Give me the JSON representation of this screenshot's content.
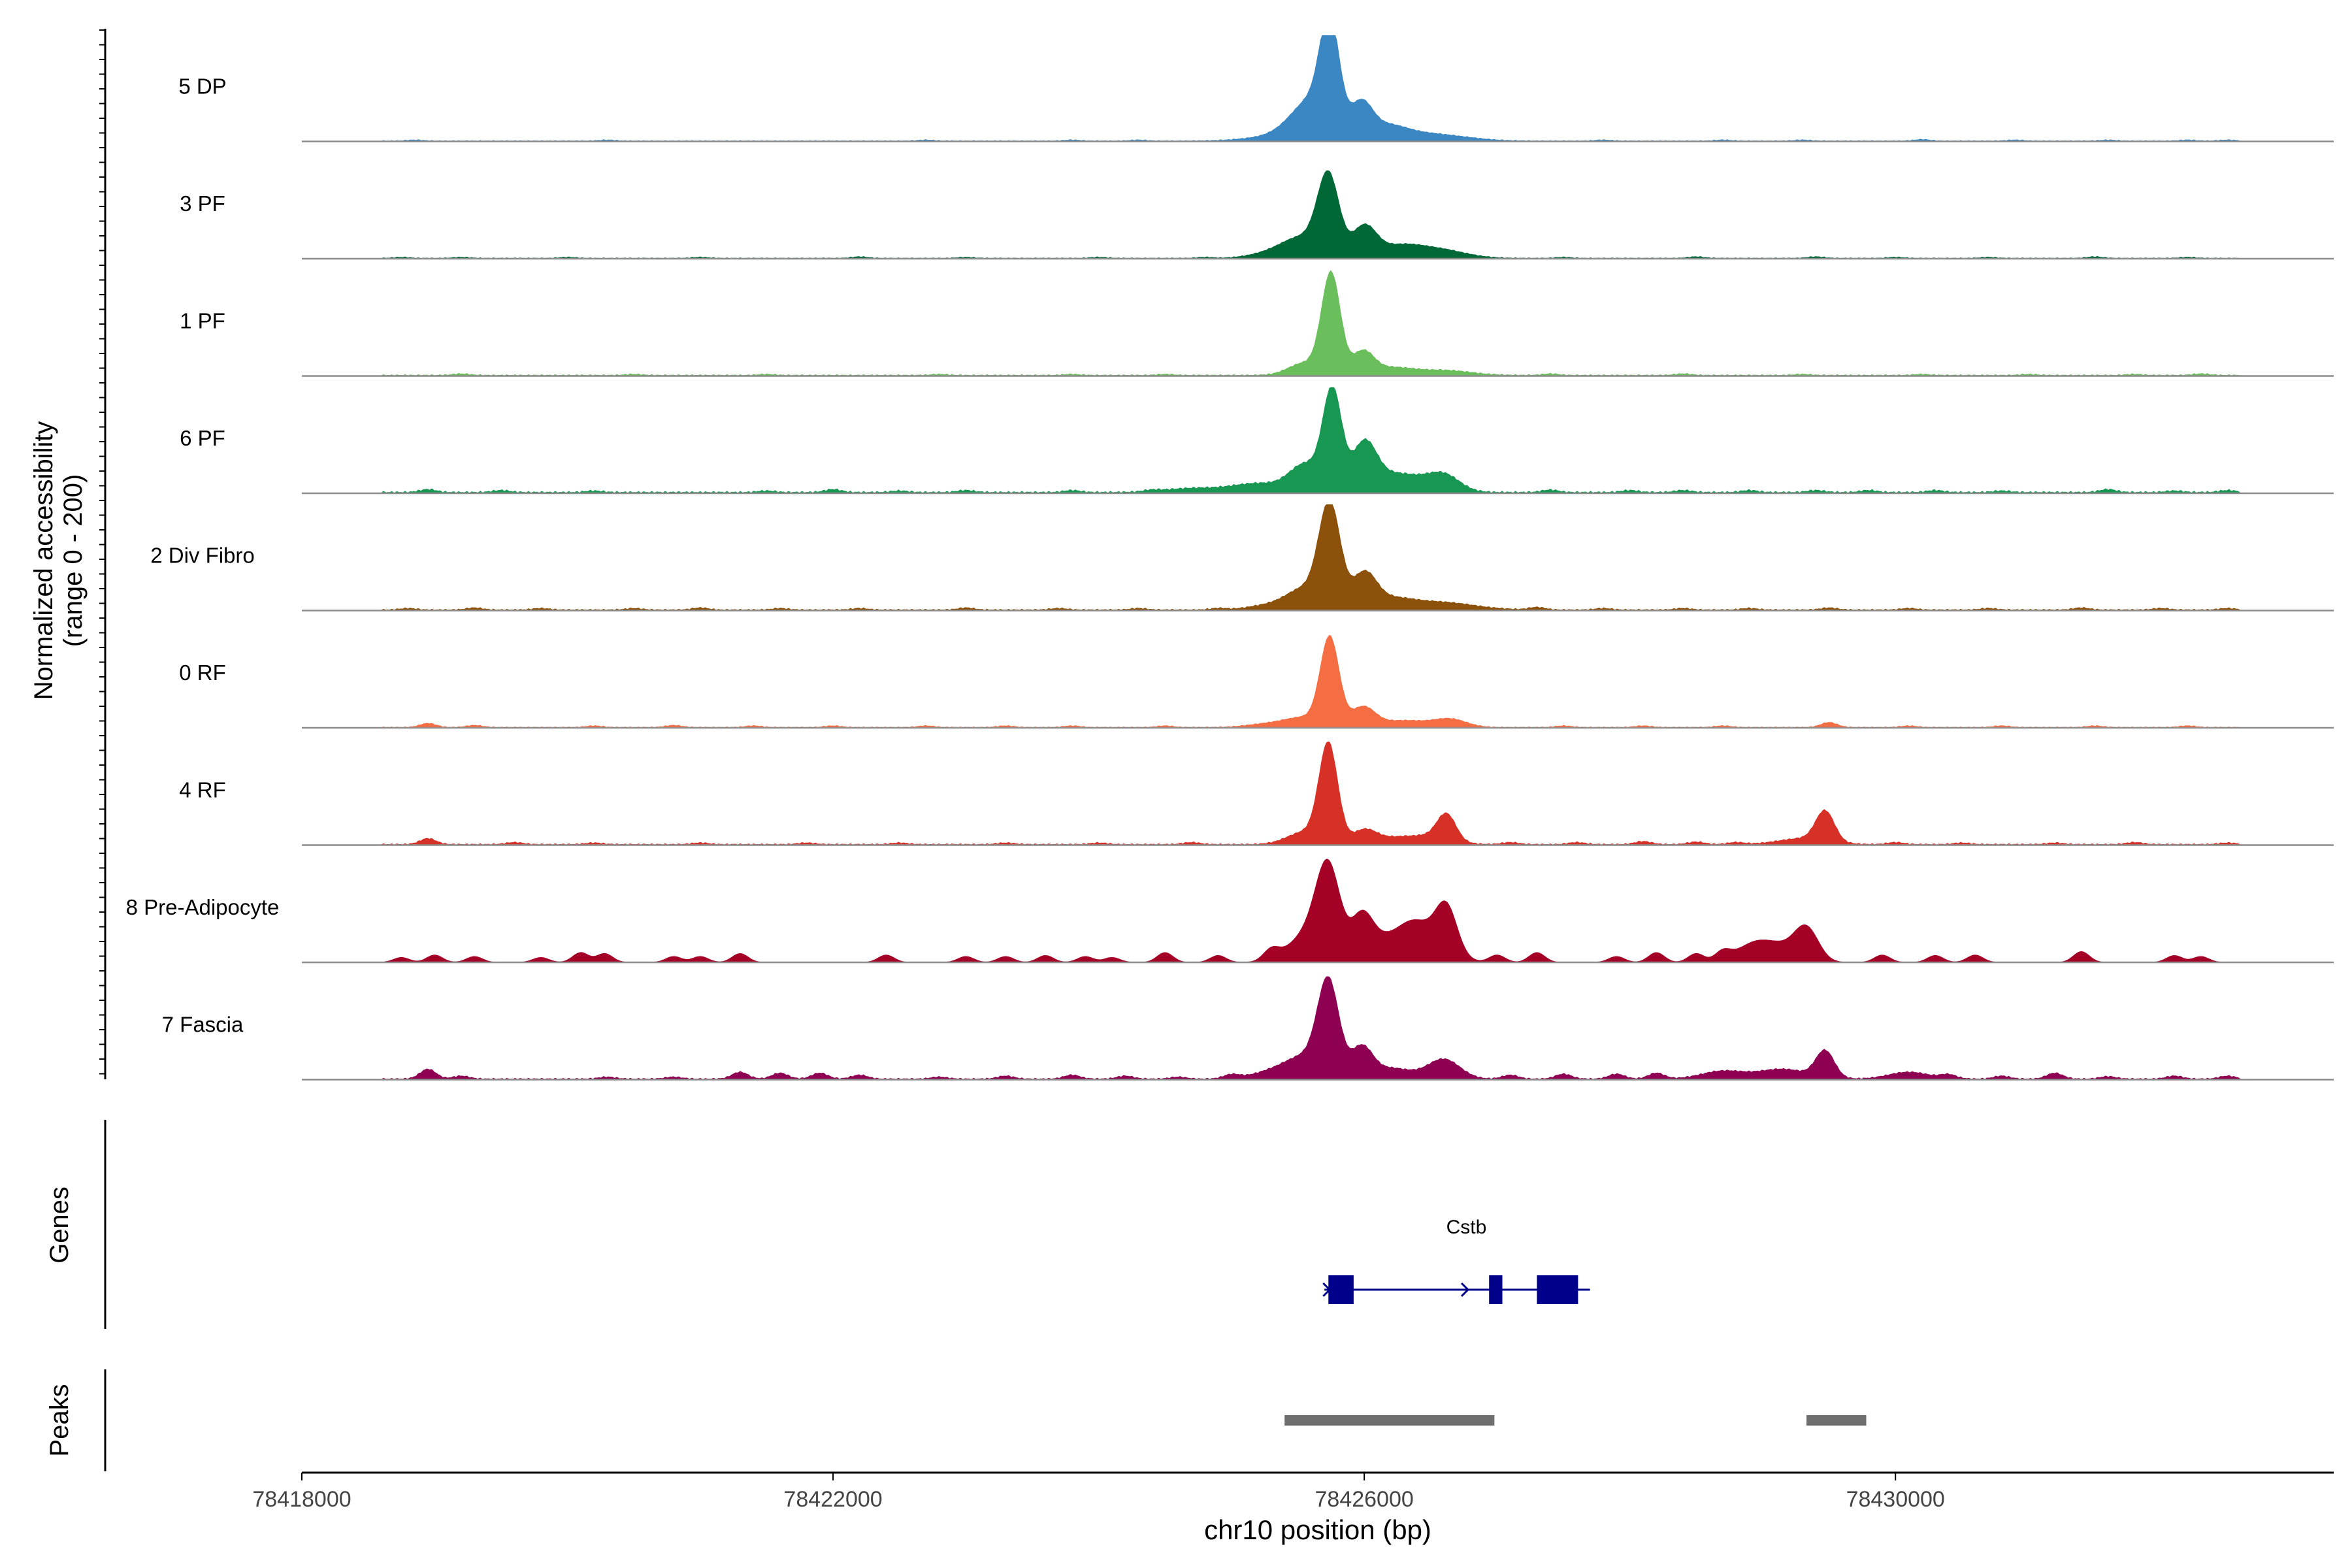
{
  "chart_data": {
    "type": "area",
    "title": "",
    "ylabel": "Normalized accessibility",
    "ylabel_range": "(range 0 - 200)",
    "ylim": [
      0,
      200
    ],
    "xlabel": "chr10 position (bp)",
    "xlim": [
      78418000,
      78433300
    ],
    "x_ticks": [
      78418000,
      78422000,
      78426000,
      78430000
    ],
    "x_tick_labels": [
      "78418000",
      "78422000",
      "78426000",
      "78430000"
    ],
    "panel_labels": {
      "genes": "Genes",
      "peaks": "Peaks"
    },
    "tracks": [
      {
        "name": "5 DP",
        "color": "#3A87C4",
        "bg": 2,
        "peaks": [
          [
            78425740,
            200,
            70
          ],
          [
            78425620,
            80,
            160
          ],
          [
            78425980,
            60,
            80
          ],
          [
            78426150,
            28,
            160
          ],
          [
            78426500,
            14,
            260
          ],
          [
            78425400,
            10,
            250
          ]
        ],
        "speckles": [
          [
            78418850,
            2
          ],
          [
            78420300,
            2
          ],
          [
            78422700,
            2
          ],
          [
            78423800,
            2
          ],
          [
            78424300,
            2
          ],
          [
            78427800,
            2
          ],
          [
            78428700,
            2
          ],
          [
            78429300,
            2
          ],
          [
            78430200,
            3
          ],
          [
            78430900,
            2
          ],
          [
            78431600,
            2
          ],
          [
            78432200,
            2
          ],
          [
            78432500,
            2
          ]
        ]
      },
      {
        "name": "3 PF",
        "color": "#006837",
        "bg": 2,
        "peaks": [
          [
            78425730,
            160,
            80
          ],
          [
            78425540,
            40,
            150
          ],
          [
            78426000,
            62,
            90
          ],
          [
            78426250,
            22,
            160
          ],
          [
            78426550,
            18,
            200
          ],
          [
            78425300,
            10,
            160
          ]
        ],
        "speckles": [
          [
            78418750,
            2
          ],
          [
            78419200,
            2
          ],
          [
            78420000,
            2
          ],
          [
            78421000,
            2
          ],
          [
            78422200,
            3
          ],
          [
            78423000,
            2
          ],
          [
            78424000,
            2
          ],
          [
            78424800,
            2
          ],
          [
            78427500,
            2
          ],
          [
            78428500,
            3
          ],
          [
            78429400,
            3
          ],
          [
            78430000,
            2
          ],
          [
            78430700,
            2
          ],
          [
            78431500,
            3
          ],
          [
            78432200,
            2
          ]
        ]
      },
      {
        "name": "1 PF",
        "color": "#6ABF5C",
        "bg": 3,
        "peaks": [
          [
            78425750,
            205,
            70
          ],
          [
            78425550,
            25,
            120
          ],
          [
            78425990,
            45,
            80
          ],
          [
            78426200,
            15,
            160
          ],
          [
            78426600,
            10,
            200
          ]
        ],
        "speckles": [
          [
            78419200,
            3
          ],
          [
            78420500,
            2
          ],
          [
            78421500,
            2
          ],
          [
            78422800,
            2
          ],
          [
            78423800,
            2
          ],
          [
            78424500,
            2
          ],
          [
            78427400,
            3
          ],
          [
            78428400,
            3
          ],
          [
            78429300,
            2
          ],
          [
            78430200,
            2
          ],
          [
            78431000,
            2
          ],
          [
            78431800,
            2
          ],
          [
            78432300,
            3
          ]
        ]
      },
      {
        "name": "6 PF",
        "color": "#189752",
        "bg": 4,
        "peaks": [
          [
            78425760,
            200,
            70
          ],
          [
            78425560,
            55,
            120
          ],
          [
            78426000,
            90,
            90
          ],
          [
            78426250,
            38,
            200
          ],
          [
            78426600,
            32,
            120
          ],
          [
            78425200,
            18,
            200
          ],
          [
            78424700,
            8,
            200
          ]
        ],
        "speckles": [
          [
            78418950,
            6
          ],
          [
            78419500,
            4
          ],
          [
            78420200,
            3
          ],
          [
            78421500,
            3
          ],
          [
            78422000,
            6
          ],
          [
            78422500,
            3
          ],
          [
            78423000,
            4
          ],
          [
            78423800,
            4
          ],
          [
            78424400,
            3
          ],
          [
            78427400,
            5
          ],
          [
            78428000,
            4
          ],
          [
            78428400,
            4
          ],
          [
            78428900,
            4
          ],
          [
            78429400,
            4
          ],
          [
            78429800,
            4
          ],
          [
            78430300,
            4
          ],
          [
            78430800,
            3
          ],
          [
            78431600,
            6
          ],
          [
            78432100,
            3
          ],
          [
            78432500,
            4
          ]
        ]
      },
      {
        "name": "2 Div Fibro",
        "color": "#8C510A",
        "bg": 3,
        "peaks": [
          [
            78425740,
            210,
            80
          ],
          [
            78425550,
            40,
            130
          ],
          [
            78426000,
            70,
            90
          ],
          [
            78426200,
            18,
            150
          ],
          [
            78426550,
            16,
            260
          ],
          [
            78425300,
            10,
            160
          ]
        ],
        "speckles": [
          [
            78418800,
            3
          ],
          [
            78419300,
            4
          ],
          [
            78419800,
            3
          ],
          [
            78420500,
            3
          ],
          [
            78421000,
            4
          ],
          [
            78421600,
            3
          ],
          [
            78422200,
            3
          ],
          [
            78423000,
            4
          ],
          [
            78423700,
            3
          ],
          [
            78424300,
            3
          ],
          [
            78424900,
            3
          ],
          [
            78427300,
            5
          ],
          [
            78427800,
            3
          ],
          [
            78428400,
            3
          ],
          [
            78428900,
            3
          ],
          [
            78429500,
            4
          ],
          [
            78430100,
            3
          ],
          [
            78430700,
            3
          ],
          [
            78431400,
            4
          ],
          [
            78432000,
            3
          ],
          [
            78432500,
            3
          ]
        ]
      },
      {
        "name": "0 RF",
        "color": "#F46D43",
        "bg": 2,
        "peaks": [
          [
            78425740,
            180,
            70
          ],
          [
            78425550,
            18,
            130
          ],
          [
            78425990,
            40,
            90
          ],
          [
            78426300,
            14,
            180
          ],
          [
            78426650,
            16,
            120
          ],
          [
            78425300,
            8,
            160
          ]
        ],
        "speckles": [
          [
            78418950,
            8
          ],
          [
            78419300,
            4
          ],
          [
            78420200,
            3
          ],
          [
            78420800,
            4
          ],
          [
            78421400,
            3
          ],
          [
            78422000,
            3
          ],
          [
            78422700,
            3
          ],
          [
            78423300,
            3
          ],
          [
            78423800,
            3
          ],
          [
            78424500,
            3
          ],
          [
            78427500,
            3
          ],
          [
            78428100,
            3
          ],
          [
            78428700,
            3
          ],
          [
            78429500,
            10
          ],
          [
            78430100,
            3
          ],
          [
            78430800,
            3
          ],
          [
            78431500,
            3
          ],
          [
            78432200,
            3
          ]
        ]
      },
      {
        "name": "4 RF",
        "color": "#D73027",
        "bg": 3,
        "peaks": [
          [
            78425730,
            200,
            70
          ],
          [
            78425550,
            25,
            130
          ],
          [
            78426000,
            28,
            90
          ],
          [
            78426220,
            12,
            140
          ],
          [
            78426620,
            52,
            70
          ],
          [
            78426500,
            16,
            150
          ],
          [
            78429470,
            62,
            70
          ],
          [
            78429300,
            12,
            180
          ]
        ],
        "speckles": [
          [
            78418950,
            12
          ],
          [
            78419600,
            4
          ],
          [
            78420200,
            3
          ],
          [
            78421000,
            3
          ],
          [
            78421800,
            3
          ],
          [
            78422500,
            3
          ],
          [
            78423300,
            3
          ],
          [
            78424000,
            3
          ],
          [
            78424700,
            4
          ],
          [
            78427100,
            4
          ],
          [
            78427600,
            4
          ],
          [
            78428100,
            6
          ],
          [
            78428500,
            5
          ],
          [
            78428800,
            4
          ],
          [
            78430000,
            4
          ],
          [
            78430500,
            3
          ],
          [
            78431200,
            3
          ],
          [
            78431800,
            4
          ],
          [
            78432500,
            3
          ]
        ]
      },
      {
        "name": "8 Pre-Adipocyte",
        "color": "#A50026",
        "bg": 0,
        "peaks": [
          [
            78425730,
            170,
            90
          ],
          [
            78425590,
            60,
            150
          ],
          [
            78425980,
            80,
            80
          ],
          [
            78426120,
            40,
            120
          ],
          [
            78426350,
            55,
            120
          ],
          [
            78426620,
            90,
            80
          ],
          [
            78426500,
            40,
            150
          ],
          [
            78429330,
            65,
            90
          ],
          [
            78429100,
            35,
            150
          ],
          [
            78428900,
            25,
            120
          ]
        ],
        "speckles": [
          [
            78418750,
            10
          ],
          [
            78419000,
            15
          ],
          [
            78419300,
            12
          ],
          [
            78419800,
            10
          ],
          [
            78420100,
            20
          ],
          [
            78420280,
            18
          ],
          [
            78420800,
            12
          ],
          [
            78421000,
            12
          ],
          [
            78421300,
            18
          ],
          [
            78422400,
            15
          ],
          [
            78423000,
            12
          ],
          [
            78423300,
            12
          ],
          [
            78423600,
            14
          ],
          [
            78423900,
            12
          ],
          [
            78424100,
            10
          ],
          [
            78424500,
            20
          ],
          [
            78424900,
            14
          ],
          [
            78425300,
            22
          ],
          [
            78427000,
            15
          ],
          [
            78427300,
            20
          ],
          [
            78427900,
            12
          ],
          [
            78428200,
            20
          ],
          [
            78428500,
            18
          ],
          [
            78428700,
            20
          ],
          [
            78429900,
            15
          ],
          [
            78430300,
            14
          ],
          [
            78430600,
            15
          ],
          [
            78431400,
            22
          ],
          [
            78432100,
            14
          ],
          [
            78432300,
            12
          ]
        ]
      },
      {
        "name": "7 Fascia",
        "color": "#8E0152",
        "bg": 3,
        "peaks": [
          [
            78425730,
            190,
            80
          ],
          [
            78425550,
            42,
            140
          ],
          [
            78425980,
            60,
            80
          ],
          [
            78426200,
            22,
            160
          ],
          [
            78426600,
            40,
            120
          ],
          [
            78425300,
            14,
            150
          ],
          [
            78429470,
            55,
            70
          ],
          [
            78429150,
            20,
            180
          ],
          [
            78428700,
            16,
            160
          ],
          [
            78430100,
            14,
            150
          ]
        ],
        "speckles": [
          [
            78418950,
            20
          ],
          [
            78419200,
            6
          ],
          [
            78420300,
            4
          ],
          [
            78420800,
            4
          ],
          [
            78421300,
            14
          ],
          [
            78421600,
            12
          ],
          [
            78421900,
            12
          ],
          [
            78422200,
            8
          ],
          [
            78422800,
            4
          ],
          [
            78423300,
            6
          ],
          [
            78423800,
            8
          ],
          [
            78424200,
            6
          ],
          [
            78424600,
            4
          ],
          [
            78425000,
            8
          ],
          [
            78427100,
            8
          ],
          [
            78427500,
            10
          ],
          [
            78427900,
            10
          ],
          [
            78428200,
            12
          ],
          [
            78430400,
            8
          ],
          [
            78430800,
            6
          ],
          [
            78431200,
            12
          ],
          [
            78431600,
            5
          ],
          [
            78432100,
            6
          ],
          [
            78432500,
            6
          ]
        ]
      }
    ],
    "gene": {
      "name": "Cstb",
      "strand": "+",
      "start": 78425700,
      "end": 78427700,
      "exons": [
        [
          78425730,
          78425920
        ],
        [
          78426940,
          78427040
        ],
        [
          78427300,
          78427610
        ]
      ]
    },
    "peak_regions": [
      [
        78425400,
        78426980
      ],
      [
        78429330,
        78429780
      ]
    ]
  }
}
